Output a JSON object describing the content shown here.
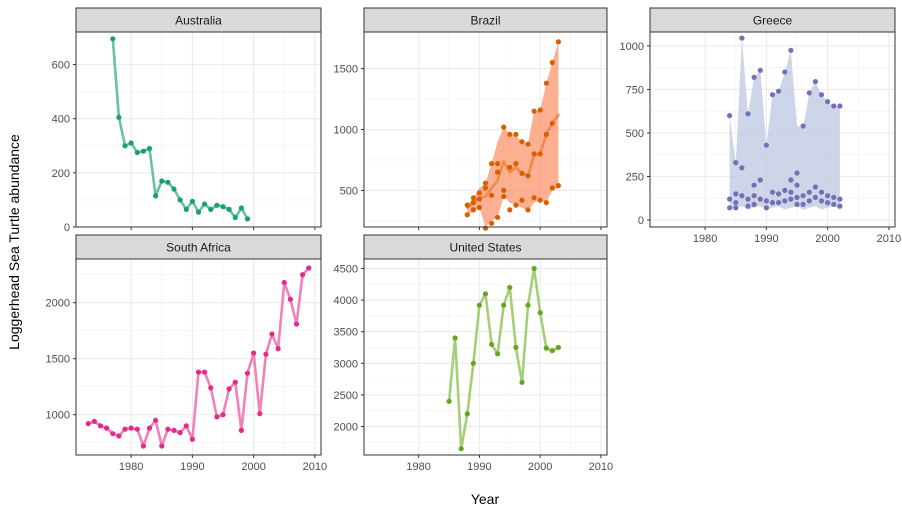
{
  "chart_data": {
    "type": "line",
    "xlabel": "Year",
    "ylabel": "Loggerhead Sea Turtle abundance",
    "xticks": [
      1980,
      1990,
      2000,
      2010
    ],
    "xlim": [
      1971,
      2011
    ],
    "grid": true,
    "legend": "none",
    "panels": [
      {
        "name": "Australia",
        "color": "#1B9E77",
        "line_color": "#66C2A5",
        "ylim": [
          0,
          720
        ],
        "yticks": [
          0,
          200,
          400,
          600
        ],
        "x": [
          1977,
          1978,
          1979,
          1980,
          1981,
          1982,
          1983,
          1984,
          1985,
          1986,
          1987,
          1988,
          1989,
          1990,
          1991,
          1992,
          1993,
          1994,
          1995,
          1996,
          1997,
          1998,
          1999
        ],
        "y": [
          695,
          405,
          300,
          310,
          275,
          280,
          290,
          115,
          170,
          165,
          140,
          100,
          65,
          95,
          55,
          85,
          65,
          80,
          75,
          65,
          35,
          70,
          30
        ]
      },
      {
        "name": "Brazil",
        "color": "#D95F02",
        "line_color": "#F08A4B",
        "band_color": "#FC8D62",
        "ylim": [
          200,
          1800
        ],
        "yticks": [
          500,
          1000,
          1500
        ],
        "x": [
          1988,
          1989,
          1990,
          1991,
          1992,
          1993,
          1994,
          1995,
          1996,
          1997,
          1998,
          1999,
          2000,
          2001,
          2002,
          2003
        ],
        "mean": [
          360,
          400,
          440,
          450,
          520,
          580,
          740,
          650,
          690,
          640,
          620,
          790,
          800,
          960,
          1050,
          1120
        ],
        "low": [
          300,
          330,
          360,
          200,
          250,
          280,
          450,
          400,
          380,
          360,
          330,
          400,
          420,
          400,
          500,
          520
        ],
        "high": [
          380,
          440,
          520,
          560,
          720,
          900,
          1020,
          960,
          950,
          900,
          880,
          1150,
          1160,
          1380,
          1550,
          1720
        ],
        "points_x": [
          1988,
          1988,
          1989,
          1989,
          1989,
          1990,
          1990,
          1990,
          1991,
          1991,
          1991,
          1992,
          1992,
          1992,
          1993,
          1993,
          1993,
          1994,
          1994,
          1994,
          1995,
          1995,
          1995,
          1996,
          1996,
          1996,
          1997,
          1997,
          1997,
          1998,
          1998,
          1998,
          1999,
          1999,
          1999,
          2000,
          2000,
          2000,
          2001,
          2001,
          2001,
          2002,
          2002,
          2002,
          2003,
          2003
        ],
        "points_y": [
          300,
          380,
          340,
          400,
          440,
          360,
          480,
          430,
          190,
          560,
          520,
          230,
          720,
          460,
          280,
          720,
          650,
          450,
          1020,
          500,
          340,
          960,
          690,
          380,
          960,
          720,
          420,
          900,
          640,
          340,
          880,
          620,
          440,
          1150,
          800,
          420,
          1160,
          800,
          400,
          1380,
          960,
          520,
          1550,
          1050,
          540,
          1720
        ]
      },
      {
        "name": "Greece",
        "color": "#7570B3",
        "band_color": "#C3CAE3",
        "ylim": [
          -40,
          1080
        ],
        "yticks": [
          0,
          250,
          500,
          750,
          1000
        ],
        "x": [
          1984,
          1985,
          1986,
          1987,
          1988,
          1989,
          1990,
          1991,
          1992,
          1993,
          1994,
          1995,
          1996,
          1997,
          1998,
          1999,
          2000,
          2001,
          2002
        ],
        "low": [
          60,
          70,
          80,
          60,
          70,
          80,
          60,
          70,
          80,
          60,
          70,
          80,
          60,
          70,
          80,
          60,
          70,
          80,
          60
        ],
        "high": [
          600,
          330,
          1045,
          610,
          820,
          860,
          430,
          720,
          740,
          850,
          975,
          540,
          530,
          730,
          795,
          720,
          680,
          655,
          655
        ],
        "points_x": [
          1984,
          1984,
          1984,
          1985,
          1985,
          1985,
          1985,
          1986,
          1986,
          1986,
          1987,
          1987,
          1987,
          1988,
          1988,
          1988,
          1988,
          1989,
          1989,
          1989,
          1990,
          1990,
          1990,
          1991,
          1991,
          1991,
          1992,
          1992,
          1992,
          1993,
          1993,
          1993,
          1994,
          1994,
          1994,
          1994,
          1995,
          1995,
          1995,
          1995,
          1996,
          1996,
          1996,
          1997,
          1997,
          1997,
          1998,
          1998,
          1998,
          1999,
          1999,
          1999,
          2000,
          2000,
          2000,
          2001,
          2001,
          2001,
          2002,
          2002,
          2002
        ],
        "points_y": [
          600,
          120,
          70,
          330,
          150,
          100,
          70,
          1045,
          300,
          140,
          610,
          120,
          80,
          820,
          200,
          140,
          90,
          860,
          230,
          120,
          430,
          110,
          70,
          720,
          160,
          100,
          740,
          150,
          100,
          850,
          170,
          110,
          975,
          230,
          160,
          120,
          270,
          200,
          130,
          90,
          540,
          140,
          90,
          730,
          160,
          110,
          795,
          190,
          130,
          720,
          160,
          110,
          680,
          140,
          100,
          655,
          130,
          90,
          655,
          120,
          80
        ]
      },
      {
        "name": "South Africa",
        "color": "#E7298A",
        "line_color": "#F081B9",
        "ylim": [
          640,
          2390
        ],
        "yticks": [
          1000,
          1500,
          2000
        ],
        "x": [
          1973,
          1974,
          1975,
          1976,
          1977,
          1978,
          1979,
          1980,
          1981,
          1982,
          1983,
          1984,
          1985,
          1986,
          1987,
          1988,
          1989,
          1990,
          1991,
          1992,
          1993,
          1994,
          1995,
          1996,
          1997,
          1998,
          1999,
          2000,
          2001,
          2002,
          2003,
          2004,
          2005,
          2006,
          2007,
          2008,
          2009
        ],
        "y": [
          920,
          940,
          900,
          880,
          830,
          810,
          870,
          880,
          870,
          720,
          880,
          950,
          720,
          870,
          860,
          840,
          900,
          780,
          1380,
          1380,
          1240,
          980,
          1000,
          1230,
          1290,
          860,
          1370,
          1550,
          1010,
          1540,
          1720,
          1590,
          2180,
          2030,
          1810,
          2250,
          2310
        ]
      },
      {
        "name": "United States",
        "color": "#66A61E",
        "line_color": "#A6CE78",
        "ylim": [
          1550,
          4650
        ],
        "yticks": [
          2000,
          2500,
          3000,
          3500,
          4000,
          4500
        ],
        "x": [
          1985,
          1986,
          1987,
          1988,
          1989,
          1990,
          1991,
          1992,
          1993,
          1994,
          1995,
          1996,
          1997,
          1998,
          1999,
          2000,
          2001,
          2002,
          2003
        ],
        "y": [
          2400,
          3400,
          1650,
          2200,
          3000,
          3920,
          4100,
          3300,
          3150,
          3920,
          4200,
          3250,
          2700,
          3920,
          4500,
          3800,
          3240,
          3200,
          3250
        ]
      }
    ]
  }
}
